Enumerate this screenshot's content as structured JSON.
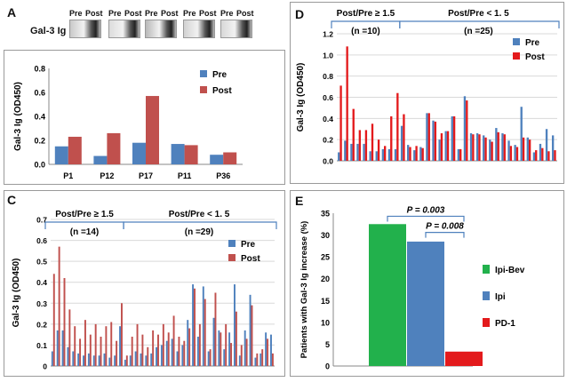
{
  "panel_letters": {
    "A": "A",
    "B": "B",
    "C": "C",
    "D": "D",
    "E": "E"
  },
  "panelA": {
    "ylabel": "Gal-3 Ig",
    "blots": [
      {
        "pre": "Pre",
        "post": "Post"
      },
      {
        "pre": "Pre",
        "post": "Post"
      },
      {
        "pre": "Pre",
        "post": "Post"
      },
      {
        "pre": "Pre",
        "post": "Post"
      },
      {
        "pre": "Pre",
        "post": "Post"
      }
    ]
  },
  "colors": {
    "pre": "#4f81bd",
    "post": "#c0504d",
    "post_red": "#e31a1c",
    "green": "#22b14c",
    "grid": "#d9d9d9",
    "bracket": "#4f81bd"
  },
  "chart_data": [
    {
      "id": "B",
      "type": "bar",
      "ylabel": "Gal-3 Ig (OD450)",
      "ylim": [
        0,
        0.8
      ],
      "yticks": [
        "0.0",
        "0.2",
        "0.4",
        "0.6",
        "0.8"
      ],
      "categories": [
        "P1",
        "P12",
        "P17",
        "P11",
        "P36"
      ],
      "series": [
        {
          "name": "Pre",
          "values": [
            0.15,
            0.07,
            0.18,
            0.17,
            0.08
          ]
        },
        {
          "name": "Post",
          "values": [
            0.23,
            0.26,
            0.57,
            0.16,
            0.1
          ]
        }
      ]
    },
    {
      "id": "C",
      "type": "bar",
      "ylabel": "Gal-3  Ig  (OD450)",
      "ylim": [
        0,
        0.7
      ],
      "yticks": [
        "0",
        "0.1",
        "0.2",
        "0.3",
        "0.4",
        "0.5",
        "0.6",
        "0.7"
      ],
      "groups": [
        {
          "title": "Post/Pre ≥ 1.5",
          "n": "(n =14)"
        },
        {
          "title": "Post/Pre < 1. 5",
          "n": "(n =29)"
        }
      ],
      "series": [
        {
          "name": "Pre",
          "values": [
            0.07,
            0.17,
            0.17,
            0.09,
            0.07,
            0.06,
            0.05,
            0.06,
            0.05,
            0.05,
            0.06,
            0.04,
            0.05,
            0.19,
            0.03,
            0.05,
            0.07,
            0.06,
            0.05,
            0.06,
            0.09,
            0.1,
            0.12,
            0.13,
            0.07,
            0.1,
            0.22,
            0.39,
            0.14,
            0.38,
            0.07,
            0.23,
            0.17,
            0.08,
            0.16,
            0.39,
            0.05,
            0.17,
            0.34,
            0.04,
            0.06,
            0.16,
            0.15
          ]
        },
        {
          "name": "Post",
          "values": [
            0.44,
            0.57,
            0.42,
            0.27,
            0.19,
            0.13,
            0.22,
            0.15,
            0.2,
            0.14,
            0.19,
            0.21,
            0.12,
            0.3,
            0.05,
            0.14,
            0.2,
            0.15,
            0.09,
            0.17,
            0.15,
            0.2,
            0.16,
            0.24,
            0.14,
            0.12,
            0.18,
            0.37,
            0.2,
            0.32,
            0.08,
            0.35,
            0.16,
            0.2,
            0.11,
            0.26,
            0.1,
            0.13,
            0.29,
            0.06,
            0.08,
            0.13,
            0.06
          ]
        }
      ]
    },
    {
      "id": "D",
      "type": "bar",
      "ylabel": "Gal-3  Ig (OD450)",
      "ylim": [
        0,
        1.2
      ],
      "yticks": [
        "0.0",
        "0.2",
        "0.4",
        "0.6",
        "0.8",
        "1.0",
        "1.2"
      ],
      "groups": [
        {
          "title": "Post/Pre ≥ 1.5",
          "n": "(n =10)"
        },
        {
          "title": "Post/Pre < 1. 5",
          "n": "(n =25)"
        }
      ],
      "series": [
        {
          "name": "Pre",
          "values": [
            0.08,
            0.19,
            0.16,
            0.16,
            0.16,
            0.09,
            0.09,
            0.11,
            0.11,
            0.11,
            0.33,
            0.15,
            0.1,
            0.13,
            0.45,
            0.38,
            0.2,
            0.28,
            0.42,
            0.11,
            0.61,
            0.26,
            0.26,
            0.24,
            0.2,
            0.31,
            0.26,
            0.19,
            0.15,
            0.51,
            0.22,
            0.08,
            0.16,
            0.3,
            0.24
          ]
        },
        {
          "name": "Post",
          "values": [
            0.71,
            1.08,
            0.49,
            0.29,
            0.29,
            0.35,
            0.2,
            0.14,
            0.42,
            0.64,
            0.44,
            0.13,
            0.14,
            0.12,
            0.45,
            0.37,
            0.26,
            0.28,
            0.42,
            0.11,
            0.57,
            0.25,
            0.25,
            0.22,
            0.18,
            0.27,
            0.25,
            0.14,
            0.13,
            0.22,
            0.2,
            0.1,
            0.12,
            0.09,
            0.1
          ]
        }
      ]
    },
    {
      "id": "E",
      "type": "bar",
      "ylabel": "Patients with Gal-3 Ig increase (%)",
      "ylim": [
        0,
        35
      ],
      "yticks": [
        "0",
        "5",
        "10",
        "15",
        "20",
        "25",
        "30",
        "35"
      ],
      "categories": [
        "Ipi-Bev",
        "Ipi",
        "PD-1"
      ],
      "values": [
        32.5,
        28.5,
        3.3
      ],
      "annotations": [
        {
          "text": "P = 0.003",
          "between": [
            "Ipi-Bev",
            "PD-1"
          ]
        },
        {
          "text": "P = 0.008",
          "between": [
            "Ipi",
            "PD-1"
          ]
        }
      ]
    }
  ]
}
